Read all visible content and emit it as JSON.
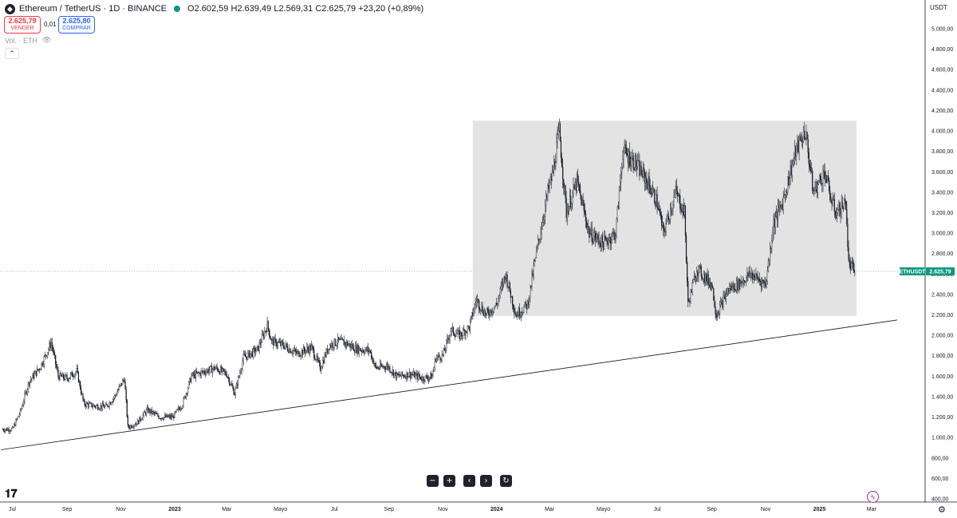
{
  "header": {
    "symbol_title": "Ethereum / TetherUS · 1D · BINANCE",
    "ohlc": {
      "open_label": "O",
      "open": "2.602,59",
      "high_label": "H",
      "high": "2.639,49",
      "low_label": "L",
      "low": "2.569,31",
      "close_label": "C",
      "close": "2.625,79",
      "change": "+23,20 (+0,89%)"
    },
    "status_color": "#089981"
  },
  "trade": {
    "sell_price": "2.625,79",
    "sell_label": "VENDER",
    "spread": "0,01",
    "buy_price": "2.625,80",
    "buy_label": "COMPRAR"
  },
  "volume_label": "Vol. · ETH",
  "price_axis": {
    "currency": "USDT",
    "ticks": [
      "5.000,00",
      "4.800,00",
      "4.600,00",
      "4.400,00",
      "4.200,00",
      "4.000,00",
      "3.800,00",
      "3.600,00",
      "3.400,00",
      "3.200,00",
      "3.000,00",
      "2.800,00",
      "2.600,00",
      "2.400,00",
      "2.200,00",
      "2.000,00",
      "1.800,00",
      "1.600,00",
      "1.400,00",
      "1.200,00",
      "1.000,00",
      "800,00",
      "600,00",
      "400,00"
    ]
  },
  "time_axis": {
    "ticks": [
      {
        "label": "Jul",
        "bold": false
      },
      {
        "label": "Sep",
        "bold": false
      },
      {
        "label": "Nov",
        "bold": false
      },
      {
        "label": "2023",
        "bold": true
      },
      {
        "label": "Mar",
        "bold": false
      },
      {
        "label": "Mayo",
        "bold": false
      },
      {
        "label": "Jul",
        "bold": false
      },
      {
        "label": "Sep",
        "bold": false
      },
      {
        "label": "Nov",
        "bold": false
      },
      {
        "label": "2024",
        "bold": true
      },
      {
        "label": "Mar",
        "bold": false
      },
      {
        "label": "Mayo",
        "bold": false
      },
      {
        "label": "Jul",
        "bold": false
      },
      {
        "label": "Sep",
        "bold": false
      },
      {
        "label": "Nov",
        "bold": false
      },
      {
        "label": "2025",
        "bold": true
      },
      {
        "label": "Mar",
        "bold": false
      }
    ]
  },
  "last_price_tag": {
    "symbol": "ETHUSDT",
    "price": "2.625,79",
    "color": "#089981"
  },
  "colors": {
    "candle": "#131722",
    "box_fill": "#e3e3e3",
    "trendline": "#131722",
    "price_line": "#089981"
  },
  "icons": [
    "ethereum-logo-icon",
    "eye-icon",
    "chevron-up-icon",
    "zoom-out-icon",
    "zoom-in-icon",
    "scroll-left-icon",
    "scroll-right-icon",
    "reset-icon",
    "tradingview-logo-icon",
    "lightning-icon",
    "gear-icon"
  ],
  "chart_data": {
    "type": "candlestick",
    "x_unit": "month",
    "y_range": [
      400,
      5000
    ],
    "series": [
      {
        "values": [
          [
            "2022-06-20",
            1080
          ],
          [
            "2022-07-01",
            1080
          ],
          [
            "2022-07-10",
            1250
          ],
          [
            "2022-07-20",
            1550
          ],
          [
            "2022-08-01",
            1680
          ],
          [
            "2022-08-10",
            1850
          ],
          [
            "2022-08-14",
            1930
          ],
          [
            "2022-08-22",
            1600
          ],
          [
            "2022-09-01",
            1580
          ],
          [
            "2022-09-12",
            1650
          ],
          [
            "2022-09-20",
            1330
          ],
          [
            "2022-10-01",
            1310
          ],
          [
            "2022-10-15",
            1300
          ],
          [
            "2022-10-25",
            1400
          ],
          [
            "2022-11-05",
            1580
          ],
          [
            "2022-11-09",
            1100
          ],
          [
            "2022-11-20",
            1150
          ],
          [
            "2022-12-01",
            1270
          ],
          [
            "2022-12-15",
            1200
          ],
          [
            "2022-12-30",
            1200
          ],
          [
            "2023-01-10",
            1330
          ],
          [
            "2023-01-20",
            1600
          ],
          [
            "2023-02-05",
            1650
          ],
          [
            "2023-02-16",
            1680
          ],
          [
            "2023-03-01",
            1620
          ],
          [
            "2023-03-10",
            1430
          ],
          [
            "2023-03-20",
            1780
          ],
          [
            "2023-04-05",
            1860
          ],
          [
            "2023-04-16",
            2100
          ],
          [
            "2023-04-21",
            1940
          ],
          [
            "2023-05-05",
            1900
          ],
          [
            "2023-05-20",
            1820
          ],
          [
            "2023-06-05",
            1880
          ],
          [
            "2023-06-15",
            1680
          ],
          [
            "2023-06-25",
            1900
          ],
          [
            "2023-07-05",
            1940
          ],
          [
            "2023-07-15",
            1920
          ],
          [
            "2023-07-25",
            1870
          ],
          [
            "2023-08-10",
            1850
          ],
          [
            "2023-08-17",
            1680
          ],
          [
            "2023-08-30",
            1700
          ],
          [
            "2023-09-10",
            1600
          ],
          [
            "2023-09-25",
            1620
          ],
          [
            "2023-10-10",
            1580
          ],
          [
            "2023-10-20",
            1600
          ],
          [
            "2023-10-24",
            1780
          ],
          [
            "2023-11-01",
            1800
          ],
          [
            "2023-11-10",
            2050
          ],
          [
            "2023-11-20",
            2000
          ],
          [
            "2023-12-01",
            2080
          ],
          [
            "2023-12-09",
            2350
          ],
          [
            "2023-12-20",
            2200
          ],
          [
            "2024-01-01",
            2300
          ],
          [
            "2024-01-11",
            2600
          ],
          [
            "2024-01-23",
            2200
          ],
          [
            "2024-02-05",
            2300
          ],
          [
            "2024-02-15",
            2800
          ],
          [
            "2024-02-28",
            3400
          ],
          [
            "2024-03-05",
            3600
          ],
          [
            "2024-03-12",
            4000
          ],
          [
            "2024-03-20",
            3200
          ],
          [
            "2024-04-01",
            3500
          ],
          [
            "2024-04-15",
            3000
          ],
          [
            "2024-05-01",
            2900
          ],
          [
            "2024-05-15",
            3000
          ],
          [
            "2024-05-23",
            3800
          ],
          [
            "2024-06-05",
            3700
          ],
          [
            "2024-06-20",
            3500
          ],
          [
            "2024-07-01",
            3300
          ],
          [
            "2024-07-08",
            3000
          ],
          [
            "2024-07-22",
            3400
          ],
          [
            "2024-08-01",
            3200
          ],
          [
            "2024-08-05",
            2300
          ],
          [
            "2024-08-15",
            2650
          ],
          [
            "2024-09-01",
            2500
          ],
          [
            "2024-09-06",
            2200
          ],
          [
            "2024-09-20",
            2450
          ],
          [
            "2024-10-01",
            2500
          ],
          [
            "2024-10-15",
            2600
          ],
          [
            "2024-11-01",
            2500
          ],
          [
            "2024-11-10",
            3100
          ],
          [
            "2024-11-20",
            3300
          ],
          [
            "2024-12-05",
            3800
          ],
          [
            "2024-12-16",
            4000
          ],
          [
            "2024-12-25",
            3400
          ],
          [
            "2025-01-07",
            3600
          ],
          [
            "2025-01-15",
            3300
          ],
          [
            "2025-01-20",
            3200
          ],
          [
            "2025-01-31",
            3300
          ],
          [
            "2025-02-03",
            2700
          ],
          [
            "2025-02-10",
            2625
          ]
        ]
      }
    ],
    "range_box": {
      "x_start": "2023-12-05",
      "x_end": "2025-02-12",
      "y_low": 2190,
      "y_high": 4100
    },
    "trendline": {
      "from": [
        "2022-06-18",
        880
      ],
      "to": [
        "2025-03-30",
        2150
      ]
    },
    "last_price": 2625.79
  }
}
